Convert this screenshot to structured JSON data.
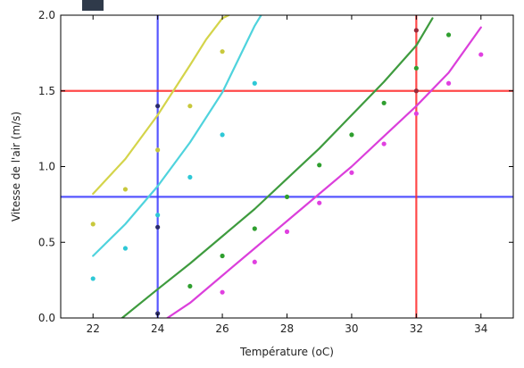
{
  "chart_data": {
    "type": "scatter",
    "xlabel": "Température (oC)",
    "ylabel": "Vitesse de l'air (m/s)",
    "xlim": [
      21,
      35
    ],
    "ylim": [
      0,
      2.0
    ],
    "xticks": [
      22,
      24,
      26,
      28,
      30,
      32,
      34
    ],
    "xtick_labels": [
      "22",
      "24",
      "26",
      "28",
      "30",
      "32",
      "34"
    ],
    "yticks": [
      0.0,
      0.5,
      1.0,
      1.5,
      2.0
    ],
    "ytick_labels": [
      "0.0",
      "0.5",
      "1.0",
      "1.5",
      "2.0"
    ],
    "grid": false,
    "curves": [
      {
        "color": "#d4d44a",
        "x": [
          22,
          23,
          24,
          25,
          25.5,
          26,
          26.2
        ],
        "y": [
          0.82,
          1.05,
          1.34,
          1.67,
          1.84,
          1.98,
          2.0
        ]
      },
      {
        "color": "#4fd3dd",
        "x": [
          22,
          23,
          24,
          25,
          26,
          27,
          27.2
        ],
        "y": [
          0.41,
          0.62,
          0.87,
          1.16,
          1.49,
          1.93,
          2.0
        ]
      },
      {
        "color": "#3e9b3e",
        "x": [
          22.9,
          24,
          25,
          26,
          27,
          28,
          29,
          30,
          31,
          32,
          32.5
        ],
        "y": [
          0.0,
          0.19,
          0.36,
          0.54,
          0.72,
          0.92,
          1.12,
          1.34,
          1.56,
          1.8,
          1.98
        ]
      },
      {
        "color": "#db3fdb",
        "x": [
          24.3,
          25,
          26,
          27,
          28,
          29,
          30,
          31,
          32,
          33,
          34
        ],
        "y": [
          0.0,
          0.1,
          0.28,
          0.46,
          0.64,
          0.82,
          1.0,
          1.2,
          1.4,
          1.62,
          1.92
        ]
      }
    ],
    "points": [
      {
        "color": "#c8c83c",
        "x": [
          22,
          23,
          24,
          25,
          26
        ],
        "y": [
          0.62,
          0.85,
          1.11,
          1.4,
          1.76
        ]
      },
      {
        "color": "#2ec8d6",
        "x": [
          22,
          23,
          24,
          25,
          26,
          27
        ],
        "y": [
          0.26,
          0.46,
          0.68,
          0.93,
          1.21,
          1.55
        ]
      },
      {
        "color": "#2f9f2f",
        "x": [
          25,
          26,
          27,
          28,
          29,
          30,
          31,
          32,
          33
        ],
        "y": [
          0.21,
          0.41,
          0.59,
          0.8,
          1.01,
          1.21,
          1.42,
          1.65,
          1.87
        ]
      },
      {
        "color": "#e040e0",
        "x": [
          26,
          27,
          28,
          29,
          30,
          31,
          32,
          33,
          34
        ],
        "y": [
          0.17,
          0.37,
          0.57,
          0.76,
          0.96,
          1.15,
          1.35,
          1.55,
          1.74
        ]
      },
      {
        "color": "#2a2a6a",
        "x": [
          24,
          24,
          24
        ],
        "y": [
          1.4,
          0.6,
          0.03
        ]
      },
      {
        "color": "#9a2a3a",
        "x": [
          32,
          32
        ],
        "y": [
          1.9,
          1.5
        ]
      }
    ],
    "reference_lines": [
      {
        "orientation": "vertical",
        "value": 24,
        "color": "#3a3aff"
      },
      {
        "orientation": "horizontal",
        "value": 0.8,
        "color": "#3a3aff"
      },
      {
        "orientation": "vertical",
        "value": 32,
        "color": "#ff2a2a"
      },
      {
        "orientation": "horizontal",
        "value": 1.5,
        "color": "#ff2a2a"
      }
    ]
  }
}
